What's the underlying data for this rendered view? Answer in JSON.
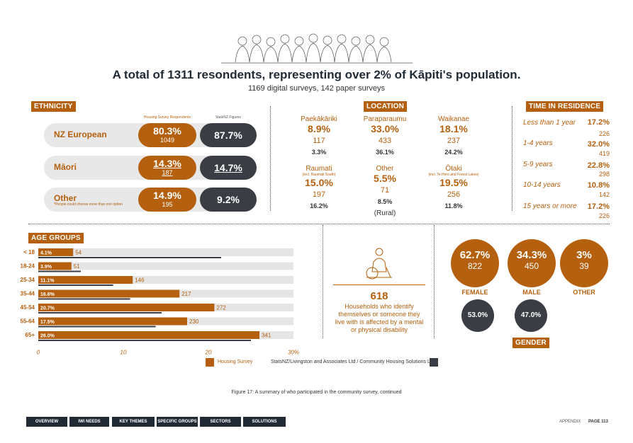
{
  "headline": "A total of 1311 resondents, representing over 2% of Kāpiti's population.",
  "subline": "1169 digital surveys, 142 paper surveys",
  "ethnicity": {
    "label": "ETHNICITY",
    "col_housing": "Housing Survey Respondents",
    "col_statsnz": "StatsNZ Figures",
    "rows": [
      {
        "name": "NZ European",
        "pct": "80.3%",
        "count": "1049",
        "statsnz": "87.7%"
      },
      {
        "name": "Māori",
        "pct": "14.3%",
        "count": "187",
        "statsnz": "14.7%"
      },
      {
        "name": "Other",
        "pct": "14.9%",
        "count": "195",
        "statsnz": "9.2%"
      }
    ],
    "footnote": "*People could choose more than one option"
  },
  "location": {
    "label": "LOCATION",
    "places": [
      {
        "name": "Paekākāriki",
        "sub": "",
        "pct": "8.9%",
        "count": "117",
        "statsnz": "3.3%"
      },
      {
        "name": "Paraparaumu",
        "sub": "",
        "pct": "33.0%",
        "count": "433",
        "statsnz": "36.1%"
      },
      {
        "name": "Waikanae",
        "sub": "",
        "pct": "18.1%",
        "count": "237",
        "statsnz": "24.2%"
      },
      {
        "name": "Raumati",
        "sub": "(incl. Raumati South)",
        "pct": "15.0%",
        "count": "197",
        "statsnz": "16.2%"
      },
      {
        "name": "Other",
        "sub": "",
        "pct": "5.5%",
        "count": "71",
        "statsnz": "8.5%",
        "note": "(Rural)"
      },
      {
        "name": "Ōtaki",
        "sub": "(incl. Te Horo and Forest Lakes)",
        "pct": "19.5%",
        "count": "256",
        "statsnz": "11.8%"
      }
    ]
  },
  "residence": {
    "label": "TIME IN RESIDENCE",
    "rows": [
      {
        "label": "Less than 1 year",
        "pct": "17.2%",
        "count": "226"
      },
      {
        "label": "1-4 years",
        "pct": "32.0%",
        "count": "419"
      },
      {
        "label": "5-9 years",
        "pct": "22.8%",
        "count": "298"
      },
      {
        "label": "10-14 years",
        "pct": "10.8%",
        "count": "142"
      },
      {
        "label": "15 years or more",
        "pct": "17.2%",
        "count": "226"
      }
    ]
  },
  "disability": {
    "value": "618",
    "text": "Households who identify themselves or someone they live with is affected by a mental or physical disability"
  },
  "gender": {
    "label": "GENDER",
    "items": [
      {
        "pct": "62.7%",
        "count": "822",
        "label": "FEMALE",
        "statsnz": "53.0%"
      },
      {
        "pct": "34.3%",
        "count": "450",
        "label": "MALE",
        "statsnz": "47.0%"
      },
      {
        "pct": "3%",
        "count": "39",
        "label": "OTHER"
      }
    ]
  },
  "chart_data": {
    "type": "bar",
    "title": "AGE GROUPS",
    "categories": [
      "< 18",
      "18-24",
      "25-34",
      "35-44",
      "45-54",
      "55-64",
      "65+"
    ],
    "series": [
      {
        "name": "Housing Survey",
        "values": [
          4.1,
          3.9,
          11.1,
          16.6,
          20.7,
          17.5,
          26.0
        ],
        "labels": [
          "4.1%",
          "3.9%",
          "11.1%",
          "16.6%",
          "20.7%",
          "17.5%",
          "26.0%"
        ],
        "counts": [
          "54",
          "51",
          "146",
          "217",
          "272",
          "230",
          "341"
        ],
        "color": "#b5600e"
      },
      {
        "name": "StatsNZ/Livingston and Associates Ltd / Community Housing Solutions Ltd",
        "values": [
          21.5,
          5.0,
          8.8,
          10.8,
          14.5,
          13.8,
          25.0
        ],
        "color": "#3a3d44"
      }
    ],
    "xticks": [
      "0",
      "10",
      "20",
      "30%"
    ],
    "xlim": [
      0,
      30
    ],
    "bg_track": 30
  },
  "caption": "Figure 17: A summary of who participated in the community survey, continued",
  "nav": [
    "OVERVIEW",
    "IWI NEEDS",
    "KEY THEMES",
    "SPECIFIC GROUPS",
    "SECTORS",
    "SOLUTIONS"
  ],
  "footer": {
    "appendix": "APPENDIX",
    "page": "PAGE 113"
  },
  "colors": {
    "accent": "#b5600e",
    "dark": "#3a3d44",
    "navy": "#1f2a35",
    "track": "#e5e5e5"
  }
}
